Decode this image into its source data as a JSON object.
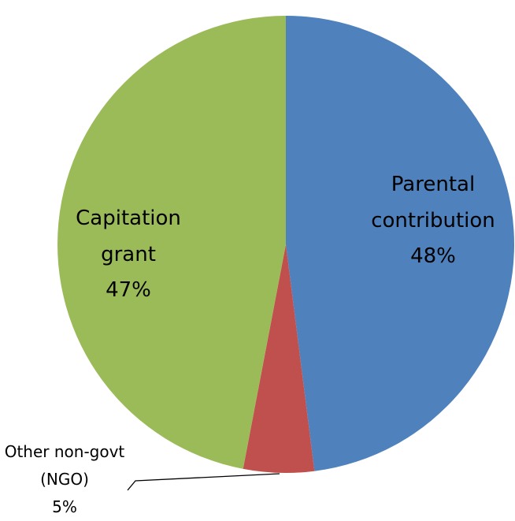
{
  "chart_data": {
    "type": "pie",
    "categories": [
      "Parental contribution",
      "Other non-govt (NGO)",
      "Capitation grant"
    ],
    "values": [
      48,
      5,
      47
    ],
    "value_labels": [
      "48%",
      "5%",
      "47%"
    ],
    "colors": [
      "#4f81bd",
      "#c0504d",
      "#9bbb59"
    ]
  }
}
